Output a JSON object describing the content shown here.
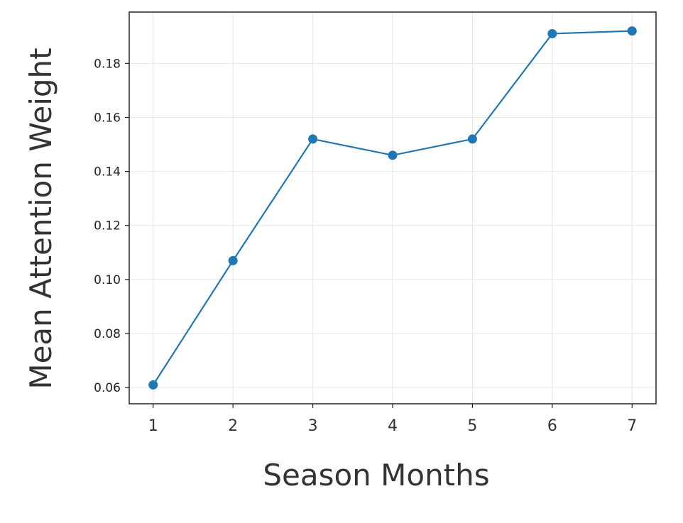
{
  "chart_data": {
    "type": "line",
    "title": "",
    "xlabel": "Season Months",
    "ylabel": "Mean Attention Weight",
    "x": [
      1,
      2,
      3,
      4,
      5,
      6,
      7
    ],
    "x_tick_labels": [
      "1",
      "2",
      "3",
      "4",
      "5",
      "6",
      "7"
    ],
    "y_tick_values": [
      0.06,
      0.08,
      0.1,
      0.12,
      0.14,
      0.16,
      0.18
    ],
    "y_tick_labels": [
      "0.06",
      "0.08",
      "0.10",
      "0.12",
      "0.14",
      "0.16",
      "0.18"
    ],
    "series": [
      {
        "values": [
          0.061,
          0.107,
          0.152,
          0.146,
          0.152,
          0.191,
          0.192
        ],
        "color": "#1f77b4",
        "marker": "circle"
      }
    ],
    "xlim": [
      0.7,
      7.3
    ],
    "ylim": [
      0.054,
      0.199
    ],
    "grid": true
  }
}
